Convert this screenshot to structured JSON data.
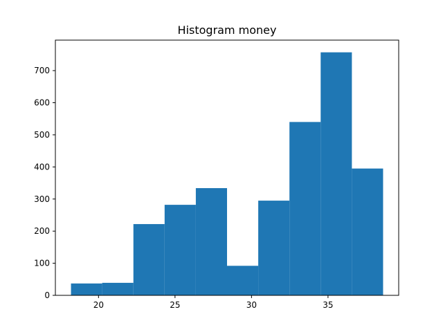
{
  "chart_data": {
    "type": "bar",
    "title": "Histogram money",
    "xlabel": "",
    "ylabel": "",
    "bin_edges": [
      18.2,
      20.24,
      22.28,
      24.32,
      26.36,
      28.4,
      30.44,
      32.48,
      34.52,
      36.56,
      38.6
    ],
    "values": [
      37,
      39,
      222,
      282,
      334,
      92,
      295,
      540,
      757,
      395
    ],
    "xlim": [
      17.18,
      39.62
    ],
    "ylim": [
      0,
      795
    ],
    "x_ticks": [
      20,
      25,
      30,
      35
    ],
    "x_tick_labels": [
      "20",
      "25",
      "30",
      "35"
    ],
    "y_ticks": [
      0,
      100,
      200,
      300,
      400,
      500,
      600,
      700
    ],
    "y_tick_labels": [
      "0",
      "100",
      "200",
      "300",
      "400",
      "500",
      "600",
      "700"
    ],
    "bar_color": "#1f77b4",
    "grid": false,
    "legend": "none"
  }
}
